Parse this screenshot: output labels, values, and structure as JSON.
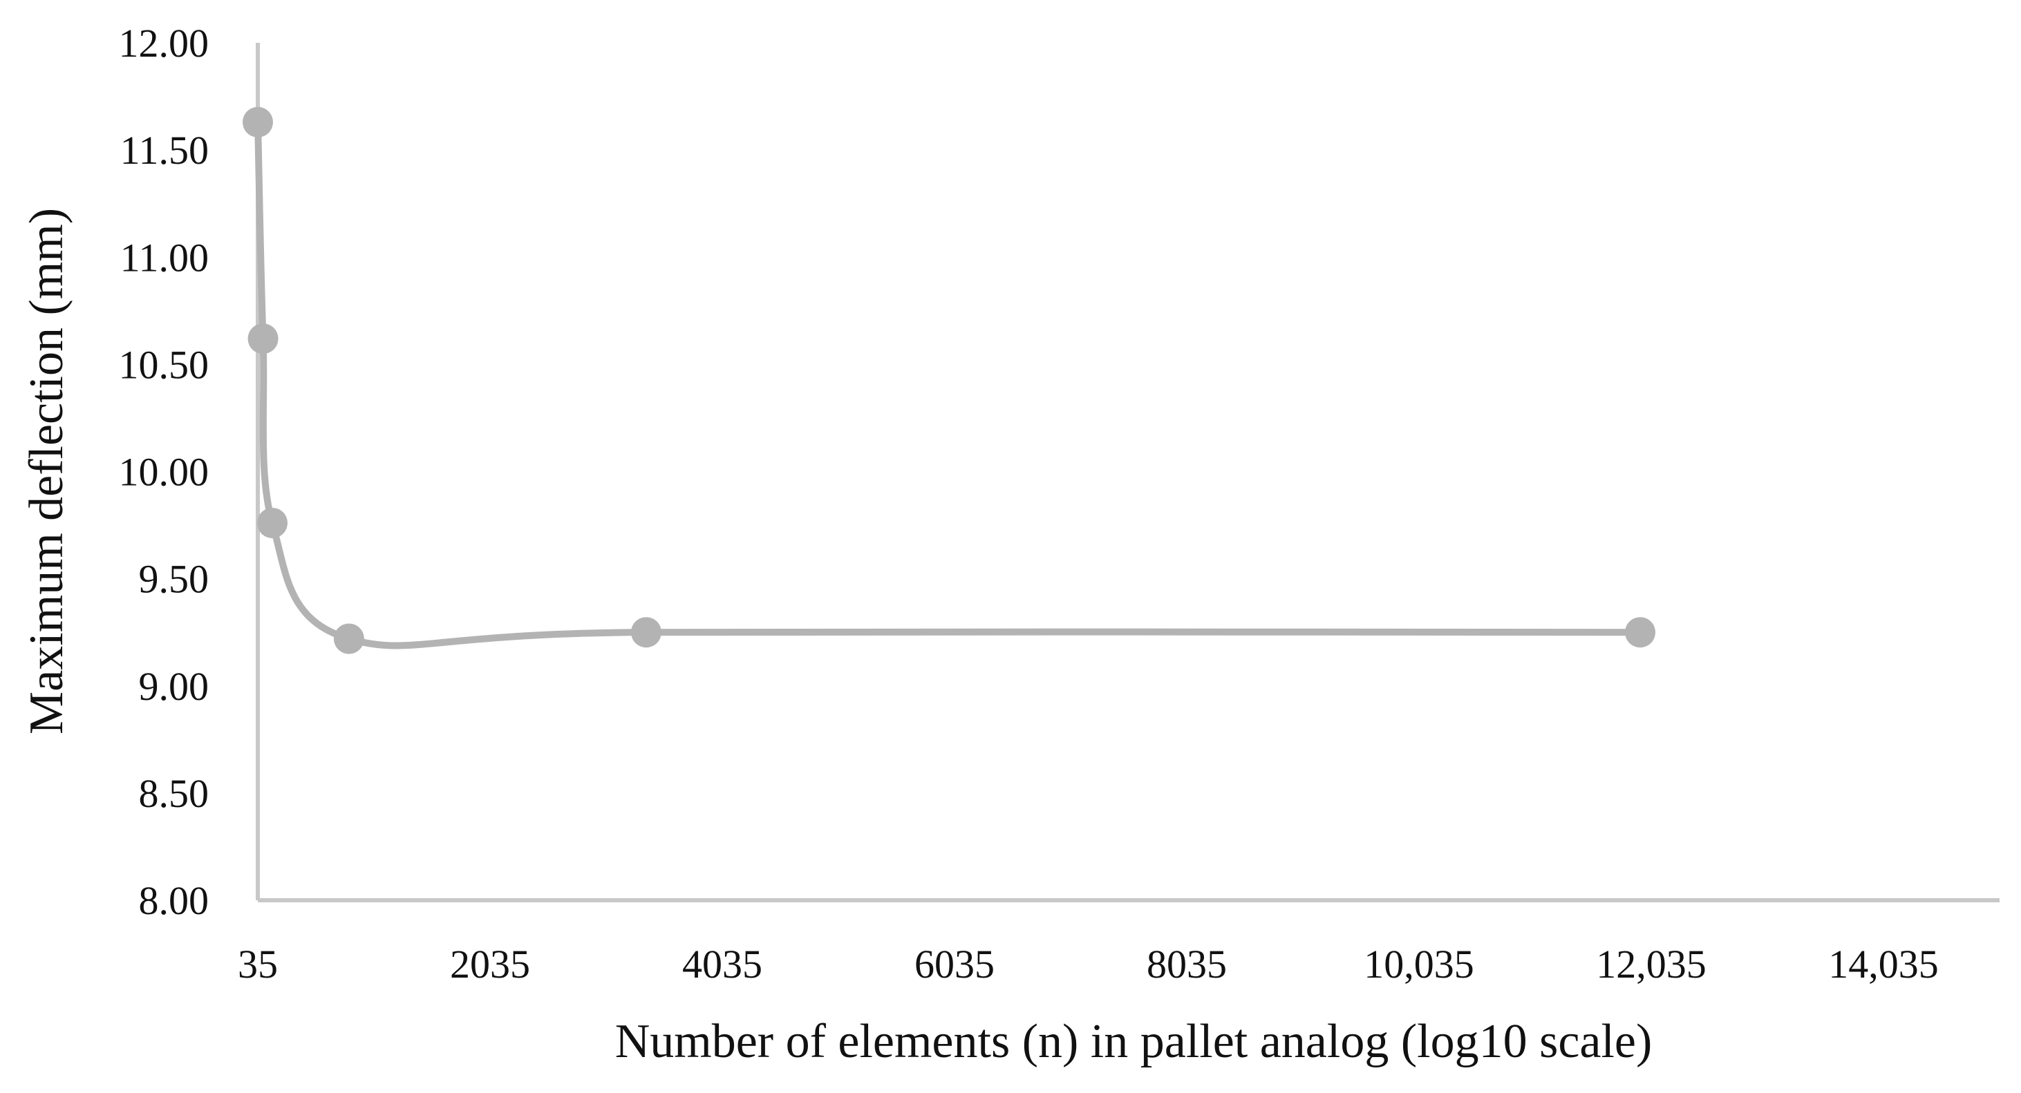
{
  "chart_data": {
    "type": "line",
    "title": "",
    "xlabel": "Number of elements (n) in pallet analog (log10 scale)",
    "ylabel": "Maximum deflection (mm)",
    "xlim": [
      35,
      15035
    ],
    "ylim": [
      8.0,
      12.0
    ],
    "x_ticks": [
      35,
      2035,
      4035,
      6035,
      8035,
      10035,
      12035,
      14035
    ],
    "x_tick_labels": [
      "35",
      "2035",
      "4035",
      "6035",
      "8035",
      "10,035",
      "12,035",
      "14,035"
    ],
    "y_ticks": [
      8.0,
      8.5,
      9.0,
      9.5,
      10.0,
      10.5,
      11.0,
      11.5,
      12.0
    ],
    "y_tick_labels": [
      "8.00",
      "8.50",
      "9.00",
      "9.50",
      "10.00",
      "10.50",
      "11.00",
      "11.50",
      "12.00"
    ],
    "grid": false,
    "legend": "none",
    "smooth": true,
    "series": [
      {
        "color": "#b3b3b3",
        "points": [
          {
            "x": 35,
            "y": 11.63
          },
          {
            "x": 80,
            "y": 10.62
          },
          {
            "x": 160,
            "y": 9.76
          },
          {
            "x": 820,
            "y": 9.22
          },
          {
            "x": 3380,
            "y": 9.25
          },
          {
            "x": 11940,
            "y": 9.25
          }
        ]
      }
    ]
  }
}
